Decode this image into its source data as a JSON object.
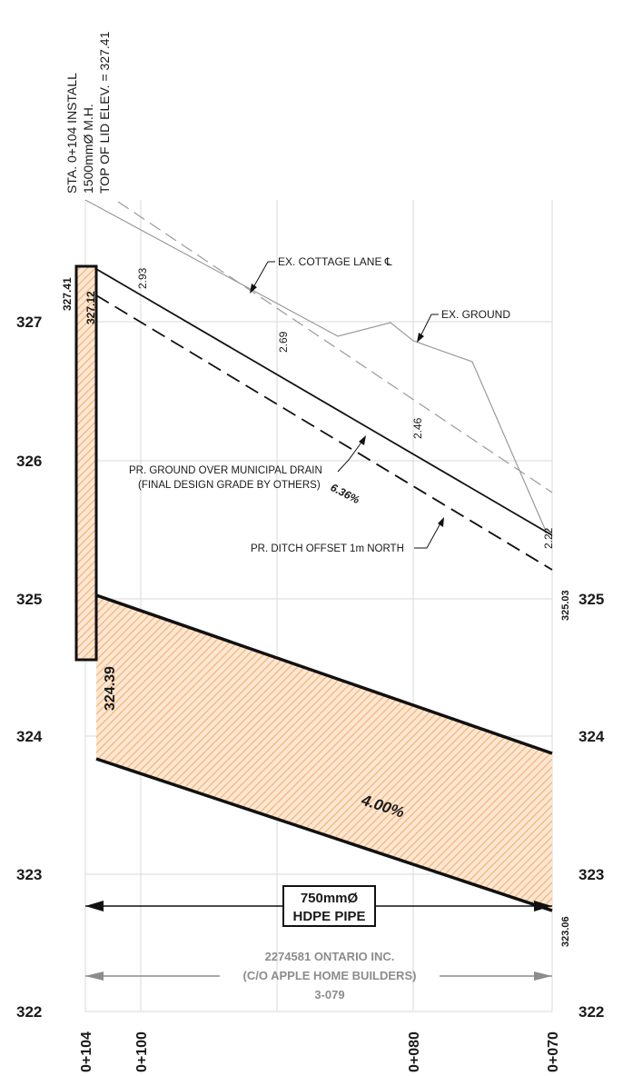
{
  "station_note": {
    "line1": "STA. 0+104 INSTALL",
    "line2": "1500mmØ M.H.",
    "line3": "TOP OF LID ELEV. = 327.41"
  },
  "elevation_axis": {
    "left_labels": [
      "327",
      "326",
      "325",
      "324",
      "323",
      "322"
    ],
    "right_labels": [
      "325",
      "324",
      "323",
      "322"
    ]
  },
  "station_axis": {
    "labels": [
      "0+104",
      "0+100",
      "0+080",
      "0+070"
    ]
  },
  "manhole": {
    "lid_elev": "327.41",
    "ground_elev": "327.12",
    "invert_elev": "324.39"
  },
  "cover_depths": [
    "2.93",
    "2.69",
    "2.46",
    "2.22"
  ],
  "end_elevations": {
    "ditch_end": "325.03",
    "pipe_invert_end": "323.06"
  },
  "callouts": {
    "cottage_lane": "EX. COTTAGE LANE ℄",
    "ex_ground": "EX. GROUND",
    "pr_ground_line1": "PR. GROUND OVER MUNICIPAL DRAIN",
    "pr_ground_line2": "(FINAL DESIGN GRADE BY OTHERS)",
    "ditch_offset": "PR. DITCH OFFSET 1m NORTH"
  },
  "slopes": {
    "ground": "6.36%",
    "pipe": "4.00%"
  },
  "pipe_label": {
    "line1": "750mmØ",
    "line2": "HDPE PIPE"
  },
  "property": {
    "line1": "2274581 ONTARIO INC.",
    "line2": "(C/O APPLE HOME BUILDERS)",
    "line3": "3-079"
  },
  "colors": {
    "pipe_fill": "#f3b47a",
    "grid": "#d9d9d9",
    "ink": "#111111",
    "existing": "#9a9a9a"
  }
}
